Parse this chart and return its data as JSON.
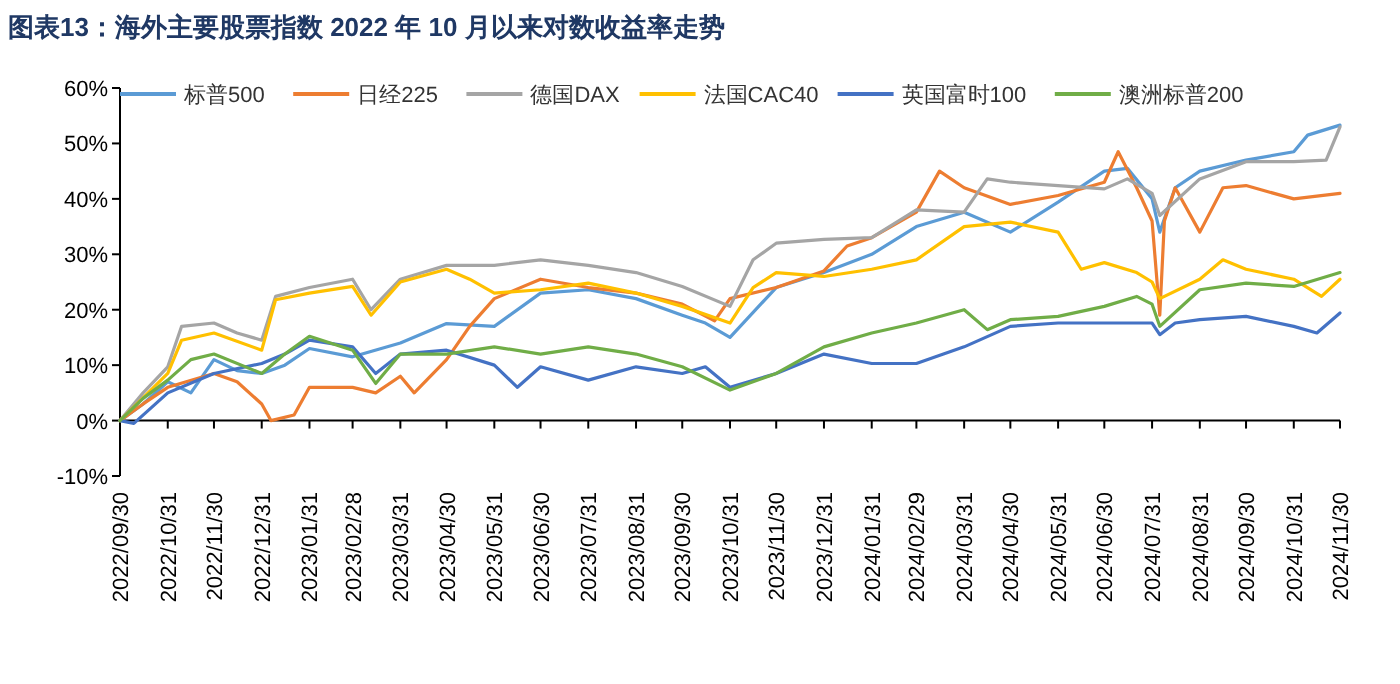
{
  "chart_data": {
    "type": "line",
    "title": "图表13：海外主要股票指数 2022 年 10 月以来对数收益率走势",
    "xlim": [
      "2022-09-30",
      "2024-11-30"
    ],
    "xticks": [
      {
        "value": "2022-09-30",
        "label": "2022/09/30"
      },
      {
        "value": "2022-10-31",
        "label": "2022/10/31"
      },
      {
        "value": "2022-11-30",
        "label": "2022/11/30"
      },
      {
        "value": "2022-12-31",
        "label": "2022/12/31"
      },
      {
        "value": "2023-01-31",
        "label": "2023/01/31"
      },
      {
        "value": "2023-02-28",
        "label": "2023/02/28"
      },
      {
        "value": "2023-03-31",
        "label": "2023/03/31"
      },
      {
        "value": "2023-04-30",
        "label": "2023/04/30"
      },
      {
        "value": "2023-05-31",
        "label": "2023/05/31"
      },
      {
        "value": "2023-06-30",
        "label": "2023/06/30"
      },
      {
        "value": "2023-07-31",
        "label": "2023/07/31"
      },
      {
        "value": "2023-08-31",
        "label": "2023/08/31"
      },
      {
        "value": "2023-09-30",
        "label": "2023/09/30"
      },
      {
        "value": "2023-10-31",
        "label": "2023/10/31"
      },
      {
        "value": "2023-11-30",
        "label": "2023/11/30"
      },
      {
        "value": "2023-12-31",
        "label": "2023/12/31"
      },
      {
        "value": "2024-01-31",
        "label": "2024/01/31"
      },
      {
        "value": "2024-02-29",
        "label": "2024/02/29"
      },
      {
        "value": "2024-03-31",
        "label": "2024/03/31"
      },
      {
        "value": "2024-04-30",
        "label": "2024/04/30"
      },
      {
        "value": "2024-05-31",
        "label": "2024/05/31"
      },
      {
        "value": "2024-06-30",
        "label": "2024/06/30"
      },
      {
        "value": "2024-07-31",
        "label": "2024/07/31"
      },
      {
        "value": "2024-08-31",
        "label": "2024/08/31"
      },
      {
        "value": "2024-09-30",
        "label": "2024/09/30"
      },
      {
        "value": "2024-10-31",
        "label": "2024/10/31"
      },
      {
        "value": "2024-11-30",
        "label": "2024/11/30"
      }
    ],
    "ylim": [
      -10,
      60
    ],
    "yticks": [
      {
        "value": -10,
        "label": "-10%"
      },
      {
        "value": 0,
        "label": "0%"
      },
      {
        "value": 10,
        "label": "10%"
      },
      {
        "value": 20,
        "label": "20%"
      },
      {
        "value": 30,
        "label": "30%"
      },
      {
        "value": 40,
        "label": "40%"
      },
      {
        "value": 50,
        "label": "50%"
      },
      {
        "value": 60,
        "label": "60%"
      }
    ],
    "legend": "top",
    "marker": "none",
    "line_style": "solid",
    "series": [
      {
        "name": "标普500",
        "color": "#5b9bd5",
        "x": [
          "2022-09-30",
          "2022-10-15",
          "2022-10-31",
          "2022-11-15",
          "2022-11-30",
          "2022-12-15",
          "2022-12-31",
          "2023-01-15",
          "2023-01-31",
          "2023-02-28",
          "2023-03-31",
          "2023-04-30",
          "2023-05-31",
          "2023-06-30",
          "2023-07-31",
          "2023-08-31",
          "2023-09-30",
          "2023-10-15",
          "2023-10-31",
          "2023-11-30",
          "2023-12-31",
          "2024-01-31",
          "2024-02-29",
          "2024-03-31",
          "2024-04-30",
          "2024-05-31",
          "2024-06-30",
          "2024-07-15",
          "2024-07-31",
          "2024-08-05",
          "2024-08-15",
          "2024-08-31",
          "2024-09-30",
          "2024-10-31",
          "2024-11-09",
          "2024-11-30"
        ],
        "values": [
          0,
          3,
          7,
          5,
          11,
          9,
          8.5,
          10,
          13,
          11.5,
          14,
          17.5,
          17,
          23,
          23.6,
          22,
          19,
          17.6,
          15,
          24,
          26.7,
          30,
          35,
          37.6,
          34,
          39.4,
          45,
          45.5,
          40,
          34,
          42,
          45,
          47,
          48.5,
          51.5,
          53.3
        ]
      },
      {
        "name": "日经225",
        "color": "#ed7d31",
        "x": [
          "2022-09-30",
          "2022-10-15",
          "2022-10-31",
          "2022-11-30",
          "2022-12-15",
          "2022-12-31",
          "2023-01-06",
          "2023-01-21",
          "2023-01-31",
          "2023-02-28",
          "2023-03-15",
          "2023-03-31",
          "2023-04-09",
          "2023-04-30",
          "2023-05-15",
          "2023-05-31",
          "2023-06-30",
          "2023-07-31",
          "2023-08-31",
          "2023-09-30",
          "2023-10-21",
          "2023-10-31",
          "2023-11-30",
          "2023-12-31",
          "2024-01-15",
          "2024-01-31",
          "2024-02-29",
          "2024-03-15",
          "2024-03-31",
          "2024-04-30",
          "2024-05-31",
          "2024-06-30",
          "2024-07-09",
          "2024-07-21",
          "2024-07-31",
          "2024-08-05",
          "2024-08-08",
          "2024-08-15",
          "2024-08-31",
          "2024-09-15",
          "2024-09-30",
          "2024-10-31",
          "2024-11-30"
        ],
        "values": [
          0,
          3,
          6,
          8.5,
          7,
          3,
          0,
          1,
          6,
          6,
          5,
          8,
          5,
          11,
          17,
          22,
          25.5,
          24,
          23,
          21,
          18,
          22,
          24,
          27,
          31.5,
          33,
          37.6,
          45,
          42,
          39,
          40.6,
          43,
          48.5,
          42,
          36,
          19,
          36,
          42,
          34,
          42,
          42.4,
          40,
          41
        ]
      },
      {
        "name": "德国DAX",
        "color": "#a5a5a5",
        "x": [
          "2022-09-30",
          "2022-10-15",
          "2022-10-31",
          "2022-11-09",
          "2022-11-30",
          "2022-12-15",
          "2022-12-31",
          "2023-01-09",
          "2023-01-31",
          "2023-02-28",
          "2023-03-12",
          "2023-03-31",
          "2023-04-30",
          "2023-05-31",
          "2023-06-30",
          "2023-07-31",
          "2023-08-31",
          "2023-09-30",
          "2023-10-31",
          "2023-11-15",
          "2023-11-30",
          "2023-12-31",
          "2024-01-31",
          "2024-02-29",
          "2024-03-31",
          "2024-04-15",
          "2024-04-30",
          "2024-05-31",
          "2024-06-30",
          "2024-07-15",
          "2024-07-31",
          "2024-08-05",
          "2024-08-31",
          "2024-09-30",
          "2024-10-31",
          "2024-11-21",
          "2024-11-30"
        ],
        "values": [
          0,
          5,
          9.7,
          17,
          17.6,
          15.8,
          14.5,
          22.4,
          24,
          25.5,
          20,
          25.5,
          28,
          28,
          29,
          28,
          26.7,
          24.2,
          20.6,
          29,
          32,
          32.7,
          33,
          38,
          37.6,
          43.6,
          43,
          42.4,
          41.8,
          43.6,
          41,
          37,
          43.6,
          46.7,
          46.7,
          47,
          53
        ]
      },
      {
        "name": "法国CAC40",
        "color": "#ffc000",
        "x": [
          "2022-09-30",
          "2022-10-31",
          "2022-11-09",
          "2022-11-30",
          "2022-12-31",
          "2023-01-09",
          "2023-01-31",
          "2023-02-28",
          "2023-03-12",
          "2023-03-31",
          "2023-04-30",
          "2023-05-15",
          "2023-05-31",
          "2023-06-30",
          "2023-07-31",
          "2023-08-31",
          "2023-09-30",
          "2023-10-31",
          "2023-11-15",
          "2023-11-30",
          "2023-12-31",
          "2024-01-31",
          "2024-02-29",
          "2024-03-31",
          "2024-04-30",
          "2024-05-31",
          "2024-06-15",
          "2024-06-30",
          "2024-07-21",
          "2024-07-31",
          "2024-08-05",
          "2024-08-31",
          "2024-09-15",
          "2024-09-30",
          "2024-10-31",
          "2024-11-18",
          "2024-11-30"
        ],
        "values": [
          0,
          8.5,
          14.5,
          15.8,
          12.7,
          21.8,
          23,
          24.2,
          19,
          25,
          27.3,
          25.5,
          23,
          23.6,
          24.8,
          23,
          20.6,
          17.6,
          24,
          26.7,
          26,
          27.3,
          29,
          35,
          35.8,
          34,
          27.3,
          28.5,
          26.7,
          25,
          22,
          25.5,
          29,
          27.3,
          25.5,
          22.4,
          25.5
        ]
      },
      {
        "name": "英国富时100",
        "color": "#4472c4",
        "x": [
          "2022-09-30",
          "2022-10-09",
          "2022-10-31",
          "2022-11-30",
          "2022-12-31",
          "2023-01-15",
          "2023-01-31",
          "2023-02-28",
          "2023-03-15",
          "2023-03-31",
          "2023-04-30",
          "2023-05-31",
          "2023-06-15",
          "2023-06-30",
          "2023-07-31",
          "2023-08-31",
          "2023-09-30",
          "2023-10-15",
          "2023-10-31",
          "2023-11-30",
          "2023-12-31",
          "2024-01-31",
          "2024-02-29",
          "2024-03-31",
          "2024-04-30",
          "2024-05-31",
          "2024-06-30",
          "2024-07-31",
          "2024-08-05",
          "2024-08-15",
          "2024-08-31",
          "2024-09-30",
          "2024-10-31",
          "2024-11-15",
          "2024-11-30"
        ],
        "values": [
          0,
          -0.5,
          5,
          8.5,
          10.3,
          12,
          14.5,
          13.3,
          8.5,
          12,
          12.7,
          10,
          6,
          9.7,
          7.3,
          9.7,
          8.5,
          9.7,
          6,
          8.5,
          12,
          10.3,
          10.3,
          13.3,
          17,
          17.6,
          17.6,
          17.6,
          15.5,
          17.6,
          18.2,
          18.8,
          17,
          15.8,
          19.4
        ]
      },
      {
        "name": "澳洲标普200",
        "color": "#70ad47",
        "x": [
          "2022-09-30",
          "2022-10-15",
          "2022-10-31",
          "2022-11-15",
          "2022-11-30",
          "2022-12-31",
          "2023-01-15",
          "2023-01-31",
          "2023-02-28",
          "2023-03-15",
          "2023-03-31",
          "2023-04-30",
          "2023-05-31",
          "2023-06-30",
          "2023-07-31",
          "2023-08-31",
          "2023-09-30",
          "2023-10-31",
          "2023-11-30",
          "2023-12-31",
          "2024-01-31",
          "2024-02-29",
          "2024-03-31",
          "2024-04-15",
          "2024-04-30",
          "2024-05-31",
          "2024-06-30",
          "2024-07-21",
          "2024-07-31",
          "2024-08-05",
          "2024-08-31",
          "2024-09-30",
          "2024-10-31",
          "2024-11-30"
        ],
        "values": [
          0,
          4,
          7.3,
          11,
          12,
          8.5,
          12,
          15.2,
          12.7,
          6.7,
          12,
          12,
          13.3,
          12,
          13.3,
          12,
          9.7,
          5.5,
          8.5,
          13.3,
          15.8,
          17.6,
          20,
          16.4,
          18.2,
          18.8,
          20.6,
          22.4,
          21,
          17,
          23.6,
          24.8,
          24.2,
          26.7
        ]
      }
    ]
  }
}
